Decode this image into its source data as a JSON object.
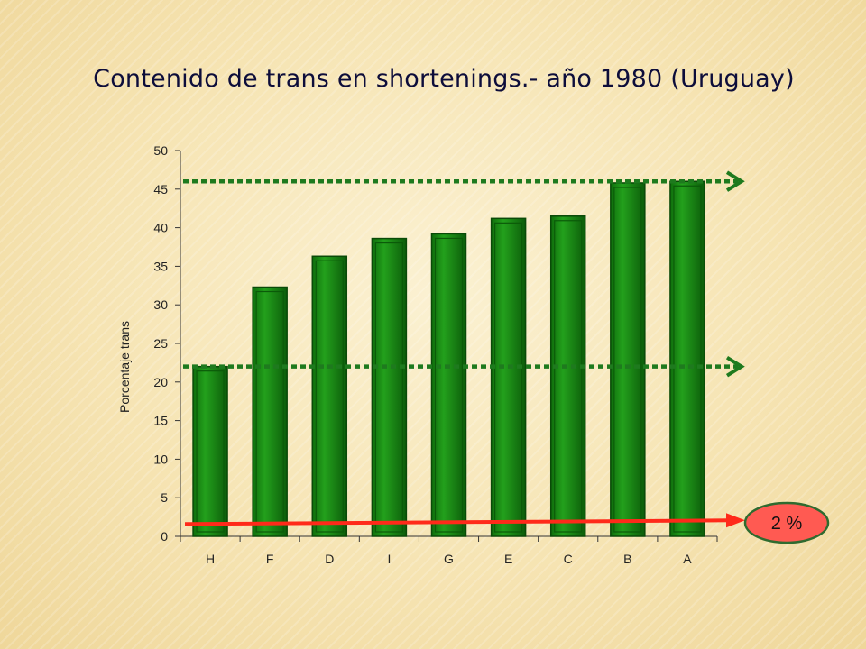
{
  "title": "Contenido de trans en shortenings.- año 1980 (Uruguay)",
  "chart_data": {
    "type": "bar",
    "title": "Contenido de trans en shortenings.- año 1980 (Uruguay)",
    "xlabel": "",
    "ylabel": "Porcentaje trans",
    "ylim": [
      0,
      50
    ],
    "yticks": [
      0,
      5,
      10,
      15,
      20,
      25,
      30,
      35,
      40,
      45,
      50
    ],
    "categories": [
      "H",
      "F",
      "D",
      "I",
      "G",
      "E",
      "C",
      "B",
      "A"
    ],
    "values": [
      22,
      32.3,
      36.3,
      38.6,
      39.2,
      41.2,
      41.5,
      45.8,
      46
    ],
    "bar_color": "#1a8a14",
    "grid": false,
    "annotations": [
      {
        "type": "dotted-arrow",
        "value": 46,
        "color": "#1e7a1e"
      },
      {
        "type": "dotted-arrow",
        "value": 22,
        "color": "#1e7a1e"
      },
      {
        "type": "solid-arrow",
        "value": 1.6,
        "color": "#ff2a1a",
        "label": "2 %"
      }
    ]
  },
  "badge": {
    "label": "2 %",
    "color": "#ff5a52"
  }
}
